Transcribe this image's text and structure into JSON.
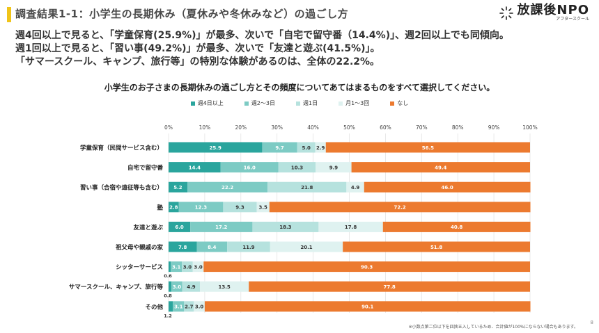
{
  "header": {
    "title": "調査結果1-1：小学生の長期休み（夏休みや冬休みなど）の過ごし方",
    "brand_name": "放課後NPO",
    "brand_sub": "アフタースクール"
  },
  "summary": {
    "line1": "週4回以上で見ると、「学童保育(25.9%)」が最多、次いで「自宅で留守番（14.4%)」、週2回以上でも同傾向。",
    "line2": "週1回以上で見ると、「習い事(49.2%)」が最多、次いで「友達と遊ぶ(41.5%)」。",
    "line3": "「サマースクール、キャンプ、旅行等」の特別な体験があるのは、全体の22.2%。"
  },
  "footnote": "※小数点第二位以下を四捨五入しているため、合計値が100%にならない場合もあります。",
  "page_number": "8",
  "colors": {
    "s1": "#2aa59d",
    "s2": "#7dcbc4",
    "s3": "#b6e2de",
    "s4": "#dff2f0",
    "s5": "#ec7a2f",
    "grid": "#e3e3e3",
    "accent": "#f0c419"
  },
  "chart_data": {
    "type": "bar",
    "orientation": "horizontal",
    "stacked": true,
    "title": "小学生のお子さまの長期休みの過ごし方とその頻度についてあてはまるものをすべて選択してください。",
    "xlim": [
      0,
      100
    ],
    "x_ticks": [
      "0%",
      "10%",
      "20%",
      "30%",
      "40%",
      "50%",
      "60%",
      "70%",
      "80%",
      "90%",
      "100%"
    ],
    "legend_position": "top-center",
    "categories": [
      "学童保育（民間サービス含む）",
      "自宅で留守番",
      "習い事（合宿や遠征等も含む）",
      "塾",
      "友達と遊ぶ",
      "祖父母や親戚の家",
      "シッターサービス",
      "サマースクール、キャンプ、旅行等",
      "その他"
    ],
    "series": [
      {
        "name": "週4日以上",
        "color": "#2aa59d",
        "values": [
          25.9,
          14.4,
          5.2,
          2.8,
          6.0,
          7.8,
          0.6,
          0.8,
          1.2
        ]
      },
      {
        "name": "週2～3日",
        "color": "#7dcbc4",
        "values": [
          9.7,
          16.0,
          22.2,
          12.3,
          17.2,
          8.4,
          3.1,
          3.0,
          3.1
        ]
      },
      {
        "name": "週1日",
        "color": "#b6e2de",
        "values": [
          5.0,
          10.3,
          21.8,
          9.3,
          18.3,
          11.9,
          3.0,
          4.9,
          2.7
        ]
      },
      {
        "name": "月1～3回",
        "color": "#dff2f0",
        "values": [
          2.9,
          9.9,
          4.9,
          3.5,
          17.8,
          20.1,
          3.0,
          13.5,
          3.0
        ]
      },
      {
        "name": "なし",
        "color": "#ec7a2f",
        "values": [
          56.5,
          49.4,
          46.0,
          72.2,
          40.8,
          51.8,
          90.3,
          77.8,
          90.1
        ]
      }
    ],
    "labels": [
      [
        "25.9",
        "9.7",
        "5.0",
        "2.9",
        "56.5"
      ],
      [
        "14.4",
        "16.0",
        "10.3",
        "9.9",
        "49.4"
      ],
      [
        "5.2",
        "22.2",
        "21.8",
        "4.9",
        "46.0"
      ],
      [
        "2.8",
        "12.3",
        "9.3",
        "3.5",
        "72.2"
      ],
      [
        "6.0",
        "17.2",
        "18.3",
        "17.8",
        "40.8"
      ],
      [
        "7.8",
        "8.4",
        "11.9",
        "20.1",
        "51.8"
      ],
      [
        "0.6",
        "3.1",
        "3.0",
        "3.0",
        "90.3"
      ],
      [
        "0.8",
        "3.0",
        "4.9",
        "13.5",
        "77.8"
      ],
      [
        "1.2",
        "3.1",
        "2.7",
        "3.0",
        "90.1"
      ]
    ]
  }
}
